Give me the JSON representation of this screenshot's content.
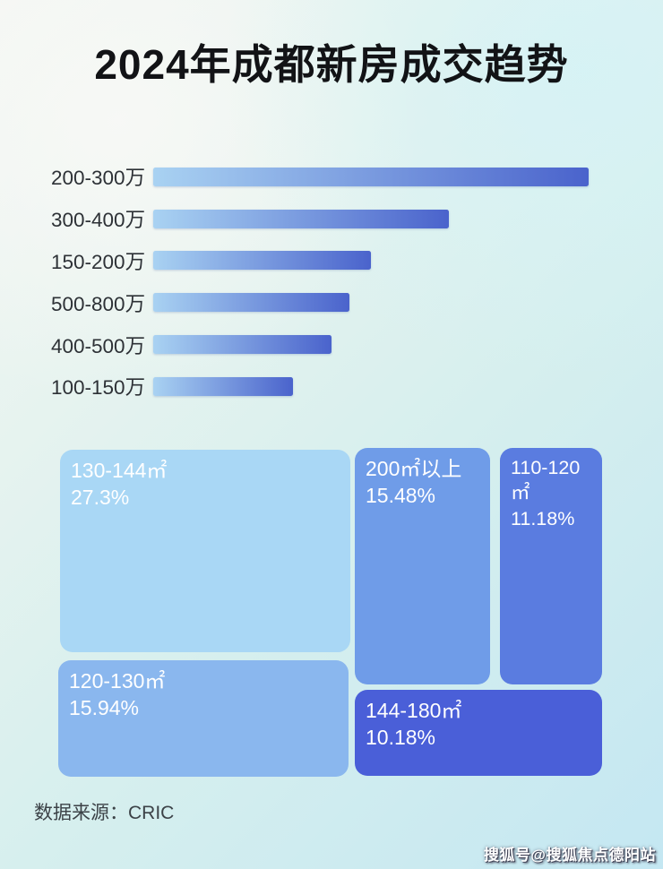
{
  "title": "2024年成都新房成交趋势",
  "colors": {
    "bar_gradient_start": "#a9d2f2",
    "bar_gradient_end": "#4a63cc"
  },
  "chart_data": [
    {
      "type": "bar",
      "orientation": "horizontal",
      "categories": [
        "200-300万",
        "300-400万",
        "150-200万",
        "500-800万",
        "400-500万",
        "100-150万"
      ],
      "values_relative_pct": [
        100,
        68,
        50,
        45,
        41,
        32
      ],
      "value_labels_shown": false,
      "axis_shown": false,
      "bar_color_gradient": [
        "#a9d2f2",
        "#4a63cc"
      ]
    },
    {
      "type": "treemap",
      "items": [
        {
          "label": "130-144㎡",
          "percent": "27.3%",
          "value": 27.3,
          "color": "#a9d7f5"
        },
        {
          "label": "120-130㎡",
          "percent": "15.94%",
          "value": 15.94,
          "color": "#8ab7ee"
        },
        {
          "label": "200㎡以上",
          "percent": "15.48%",
          "value": 15.48,
          "color": "#6f9ce8"
        },
        {
          "label": "110-120㎡",
          "percent": "11.18%",
          "value": 11.18,
          "color": "#5a7ce0"
        },
        {
          "label": "144-180㎡",
          "percent": "10.18%",
          "value": 10.18,
          "color": "#4a5fd8"
        }
      ],
      "text_color": "#ffffff"
    }
  ],
  "footer": {
    "source": "数据来源：CRIC"
  },
  "watermark": "搜狐号@搜狐焦点德阳站"
}
